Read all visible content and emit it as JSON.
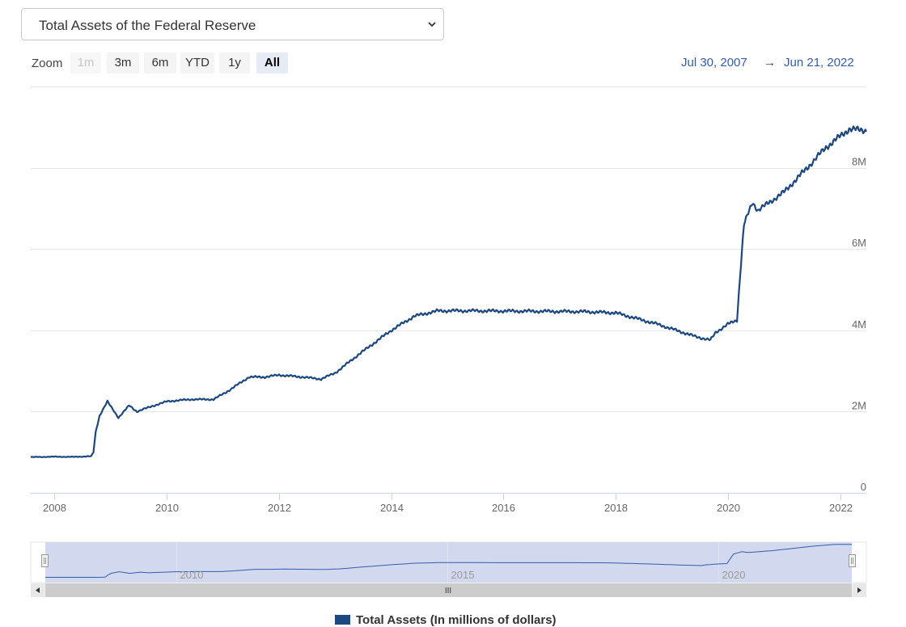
{
  "dropdown": {
    "selected": "Total Assets of the Federal Reserve"
  },
  "zoom": {
    "label": "Zoom",
    "buttons": [
      {
        "label": "1m",
        "state": "disabled"
      },
      {
        "label": "3m",
        "state": "normal"
      },
      {
        "label": "6m",
        "state": "normal"
      },
      {
        "label": "YTD",
        "state": "normal"
      },
      {
        "label": "1y",
        "state": "normal"
      },
      {
        "label": "All",
        "state": "active"
      }
    ]
  },
  "range": {
    "from": "Jul 30, 2007",
    "arrow": "→",
    "to": "Jun 21, 2022"
  },
  "colors": {
    "series": "#1b4882",
    "range_text": "#335cad",
    "navigator_fill": "#cdd5ec",
    "grid": "#e6e6e6"
  },
  "icons": {
    "dropdown": "chevron-down-icon",
    "scroll_left": "left-arrow-icon",
    "scroll_right": "right-arrow-icon",
    "scroll_grip": "grip-icon"
  },
  "navigator": {
    "labels": [
      "2010",
      "2015",
      "2020"
    ],
    "grip": "III"
  },
  "chart_data": {
    "type": "line",
    "title": "",
    "xlabel": "",
    "ylabel": "",
    "x_ticks": [
      "2008",
      "2010",
      "2012",
      "2014",
      "2016",
      "2018",
      "2020",
      "2022"
    ],
    "y_ticks": [
      "0",
      "2M",
      "4M",
      "6M",
      "8M"
    ],
    "ylim": [
      0,
      10000000
    ],
    "xlim": [
      "2007-07-30",
      "2022-06-21"
    ],
    "grid": true,
    "legend_position": "bottom-center",
    "series": [
      {
        "name": "Total Assets (In millions of dollars)",
        "color": "#1b4882",
        "points": [
          [
            "2007-07-30",
            880000
          ],
          [
            "2008-01-01",
            890000
          ],
          [
            "2008-05-01",
            885000
          ],
          [
            "2008-08-27",
            900000
          ],
          [
            "2008-09-10",
            1000000
          ],
          [
            "2008-09-25",
            1500000
          ],
          [
            "2008-10-20",
            1900000
          ],
          [
            "2008-12-10",
            2250000
          ],
          [
            "2009-01-15",
            2050000
          ],
          [
            "2009-02-20",
            1850000
          ],
          [
            "2009-05-01",
            2150000
          ],
          [
            "2009-06-20",
            2000000
          ],
          [
            "2009-09-01",
            2100000
          ],
          [
            "2010-01-01",
            2250000
          ],
          [
            "2010-06-01",
            2300000
          ],
          [
            "2010-11-01",
            2300000
          ],
          [
            "2011-02-01",
            2500000
          ],
          [
            "2011-06-20",
            2850000
          ],
          [
            "2011-10-01",
            2850000
          ],
          [
            "2012-01-01",
            2900000
          ],
          [
            "2012-06-01",
            2850000
          ],
          [
            "2012-10-01",
            2800000
          ],
          [
            "2013-01-01",
            2950000
          ],
          [
            "2013-06-01",
            3400000
          ],
          [
            "2014-01-01",
            4000000
          ],
          [
            "2014-06-01",
            4350000
          ],
          [
            "2014-11-01",
            4480000
          ],
          [
            "2015-06-01",
            4480000
          ],
          [
            "2016-06-01",
            4470000
          ],
          [
            "2017-06-01",
            4460000
          ],
          [
            "2018-01-01",
            4430000
          ],
          [
            "2018-10-01",
            4150000
          ],
          [
            "2019-06-01",
            3850000
          ],
          [
            "2019-09-10",
            3760000
          ],
          [
            "2019-10-15",
            3950000
          ],
          [
            "2020-01-01",
            4150000
          ],
          [
            "2020-03-01",
            4250000
          ],
          [
            "2020-03-20",
            5300000
          ],
          [
            "2020-04-15",
            6600000
          ],
          [
            "2020-06-10",
            7150000
          ],
          [
            "2020-07-15",
            6950000
          ],
          [
            "2021-01-01",
            7400000
          ],
          [
            "2021-06-01",
            8000000
          ],
          [
            "2021-10-01",
            8500000
          ],
          [
            "2022-03-01",
            8950000
          ],
          [
            "2022-06-21",
            8920000
          ]
        ]
      }
    ]
  }
}
